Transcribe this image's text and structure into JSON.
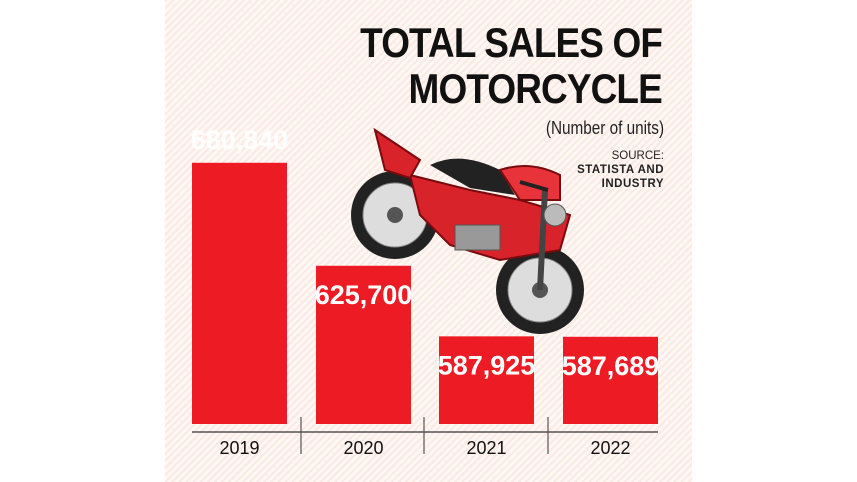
{
  "chart_data": {
    "type": "bar",
    "title": "TOTAL SALES OF MOTORCYCLE",
    "title_lines": [
      "TOTAL SALES OF",
      "MOTORCYCLE"
    ],
    "subtitle": "(Number of units)",
    "source_label": "SOURCE:",
    "source": [
      "STATISTA AND",
      "INDUSTRY"
    ],
    "categories": [
      "2019",
      "2020",
      "2021",
      "2022"
    ],
    "values": [
      680840,
      625700,
      587925,
      587689
    ],
    "data_labels": [
      "680,840",
      "625,700",
      "587,925",
      "587,689"
    ],
    "ylim": [
      541000,
      700000
    ],
    "grid": false,
    "bar_color": "#ed1c24",
    "background_color": "#fbe9e4",
    "illustration": "red-motorcycle"
  }
}
